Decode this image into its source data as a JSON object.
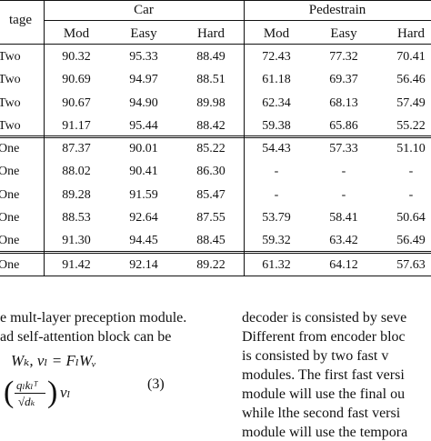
{
  "table": {
    "stage_header": "tage",
    "group_car": "Car",
    "group_ped": "Pedestrain",
    "col_headers": [
      "Mod",
      "Easy",
      "Hard",
      "Mod",
      "Easy",
      "Hard"
    ],
    "rows": [
      {
        "stage": "Two",
        "v": [
          "90.32",
          "95.33",
          "88.49",
          "72.43",
          "77.32",
          "70.41"
        ]
      },
      {
        "stage": "Two",
        "v": [
          "90.69",
          "94.97",
          "88.51",
          "61.18",
          "69.37",
          "56.46"
        ]
      },
      {
        "stage": "Two",
        "v": [
          "90.67",
          "94.90",
          "89.98",
          "62.34",
          "68.13",
          "57.49"
        ]
      },
      {
        "stage": "Two",
        "v": [
          "91.17",
          "95.44",
          "88.42",
          "59.38",
          "65.86",
          "55.22"
        ]
      },
      {
        "stage": "One",
        "v": [
          "87.37",
          "90.01",
          "85.22",
          "54.43",
          "57.33",
          "51.10"
        ]
      },
      {
        "stage": "One",
        "v": [
          "88.02",
          "90.41",
          "86.30",
          "-",
          "-",
          "-"
        ]
      },
      {
        "stage": "One",
        "v": [
          "89.28",
          "91.59",
          "85.47",
          "-",
          "-",
          "-"
        ]
      },
      {
        "stage": "One",
        "v": [
          "88.53",
          "92.64",
          "87.55",
          "53.79",
          "58.41",
          "50.64"
        ]
      },
      {
        "stage": "One",
        "v": [
          "91.30",
          "94.45",
          "88.45",
          "59.32",
          "63.42",
          "56.49"
        ]
      },
      {
        "stage": "One",
        "v": [
          "91.42",
          "92.14",
          "89.22",
          "61.32",
          "64.12",
          "57.63"
        ]
      }
    ]
  },
  "left_column": {
    "line1": "e mult-layer preception module.",
    "line2": "ad self-attention block can be",
    "eq_line": "Wₖ, vₗ = FₗWᵥ",
    "eq_fraction_num": "qₗkₗᵀ",
    "eq_fraction_den": "√dₖ",
    "eq_tail": "vₗ",
    "eq_number": "(3)"
  },
  "right_column": {
    "lines": [
      "decoder is consisted by seve",
      "Different from encoder bloc",
      "is consisted by two fast v",
      "modules. The first fast versi",
      "module will use the final ou",
      "while lthe second fast versi",
      "module will use the tempora"
    ]
  }
}
